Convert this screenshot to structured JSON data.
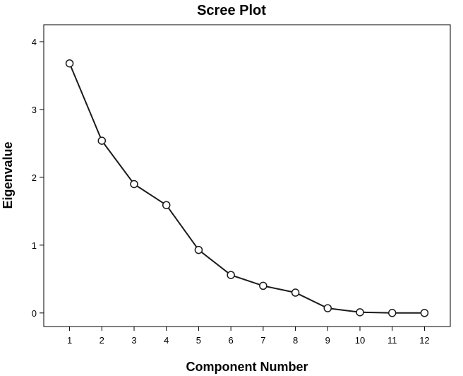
{
  "chart_data": {
    "type": "line",
    "title": "Scree Plot",
    "xlabel": "Component Number",
    "ylabel": "Eigenvalue",
    "x": [
      1,
      2,
      3,
      4,
      5,
      6,
      7,
      8,
      9,
      10,
      11,
      12
    ],
    "series": [
      {
        "values": [
          3.68,
          2.54,
          1.9,
          1.59,
          0.93,
          0.56,
          0.4,
          0.3,
          0.07,
          0.01,
          0.0,
          0.0
        ]
      }
    ],
    "xlim": [
      0.2,
      12.8
    ],
    "ylim": [
      -0.2,
      4.25
    ],
    "yticks": [
      0,
      1,
      2,
      3,
      4
    ],
    "xticks": [
      1,
      2,
      3,
      4,
      5,
      6,
      7,
      8,
      9,
      10,
      11,
      12
    ],
    "grid": false,
    "legend": "none",
    "colors": {
      "line": "#1a1a1a",
      "marker_fill": "#ffffff",
      "axis": "#000000"
    }
  }
}
